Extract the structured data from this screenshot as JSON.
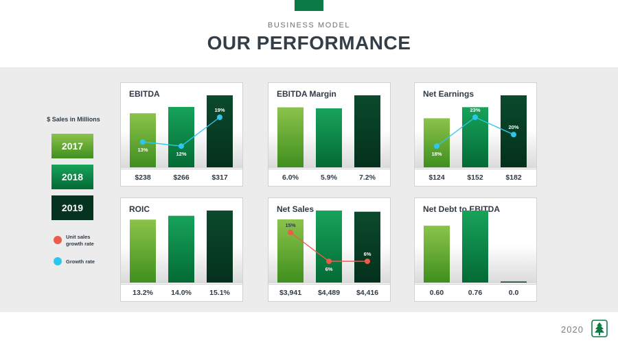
{
  "header": {
    "eyebrow": "BUSINESS MODEL",
    "title": "OUR PERFORMANCE"
  },
  "legend": {
    "caption": "$ Sales in Millions",
    "years": [
      "2017",
      "2018",
      "2019"
    ],
    "unit_sales_growth": "Unit sales growth rate",
    "growth_rate": "Growth rate"
  },
  "colors": {
    "brand": "#0b7a45",
    "unit_sales_dot": "#ee5b4b",
    "growth_dot": "#2cc7ee"
  },
  "footer": {
    "year": "2020",
    "logo": "tree-logo-icon"
  },
  "chart_data": [
    {
      "type": "bar",
      "title": "EBITDA",
      "categories": [
        "2017",
        "2018",
        "2019"
      ],
      "values": [
        238,
        266,
        317
      ],
      "labels": [
        "$238",
        "$266",
        "$317"
      ],
      "line": {
        "name": "Growth rate",
        "values": [
          13,
          12,
          19
        ],
        "labels": [
          "13%",
          "12%",
          "19%"
        ]
      }
    },
    {
      "type": "bar",
      "title": "EBITDA Margin",
      "categories": [
        "2017",
        "2018",
        "2019"
      ],
      "values": [
        6.0,
        5.9,
        7.2
      ],
      "labels": [
        "6.0%",
        "5.9%",
        "7.2%"
      ]
    },
    {
      "type": "bar",
      "title": "Net Earnings",
      "categories": [
        "2017",
        "2018",
        "2019"
      ],
      "values": [
        124,
        152,
        182
      ],
      "labels": [
        "$124",
        "$152",
        "$182"
      ],
      "line": {
        "name": "Growth rate",
        "values": [
          18,
          23,
          20
        ],
        "labels": [
          "18%",
          "23%",
          "20%"
        ]
      }
    },
    {
      "type": "bar",
      "title": "ROIC",
      "categories": [
        "2017",
        "2018",
        "2019"
      ],
      "values": [
        13.2,
        14.0,
        15.1
      ],
      "labels": [
        "13.2%",
        "14.0%",
        "15.1%"
      ]
    },
    {
      "type": "bar",
      "title": "Net Sales",
      "categories": [
        "2017",
        "2018",
        "2019"
      ],
      "values": [
        3941,
        4489,
        4416
      ],
      "labels": [
        "$3,941",
        "$4,489",
        "$4,416"
      ],
      "line": {
        "name": "Unit sales growth rate",
        "values": [
          15,
          6,
          6
        ],
        "labels": [
          "15%",
          "6%",
          "6%"
        ]
      }
    },
    {
      "type": "bar",
      "title": "Net Debt to EBITDA",
      "categories": [
        "2017",
        "2018",
        "2019"
      ],
      "values": [
        0.6,
        0.76,
        0.0
      ],
      "labels": [
        "0.60",
        "0.76",
        "0.0"
      ]
    }
  ]
}
